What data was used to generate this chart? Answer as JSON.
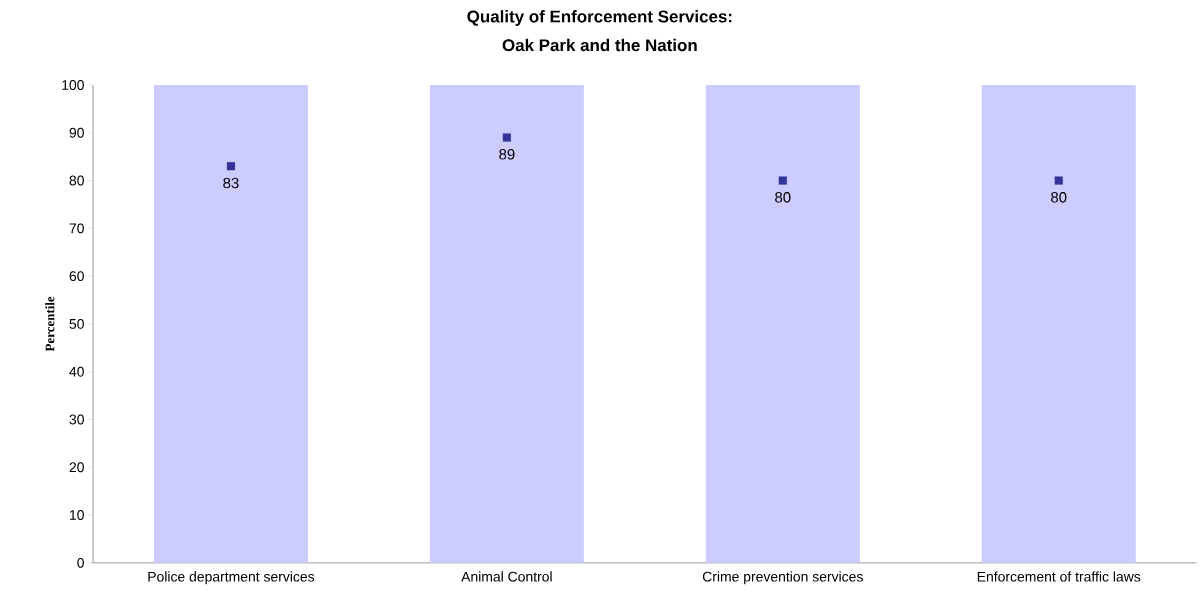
{
  "chart_data": {
    "type": "bar",
    "title": "Quality of Enforcement Services:",
    "subtitle": "Oak Park and the Nation",
    "ylabel": "Percentile",
    "categories": [
      "Police department services",
      "Animal Control",
      "Crime prevention services",
      "Enforcement of traffic laws"
    ],
    "series": [
      {
        "color": "#ccccff",
        "values": [
          100,
          100,
          100,
          100
        ]
      },
      {
        "type": "scatter",
        "marker": "square",
        "color": "#333399",
        "values": [
          83,
          89,
          80,
          80
        ],
        "value_labels": [
          "83",
          "89",
          "80",
          "80"
        ]
      }
    ],
    "ylim": [
      0,
      100
    ],
    "yticks": [
      0,
      10,
      20,
      30,
      40,
      50,
      60,
      70,
      80,
      90,
      100
    ],
    "grid": false
  }
}
